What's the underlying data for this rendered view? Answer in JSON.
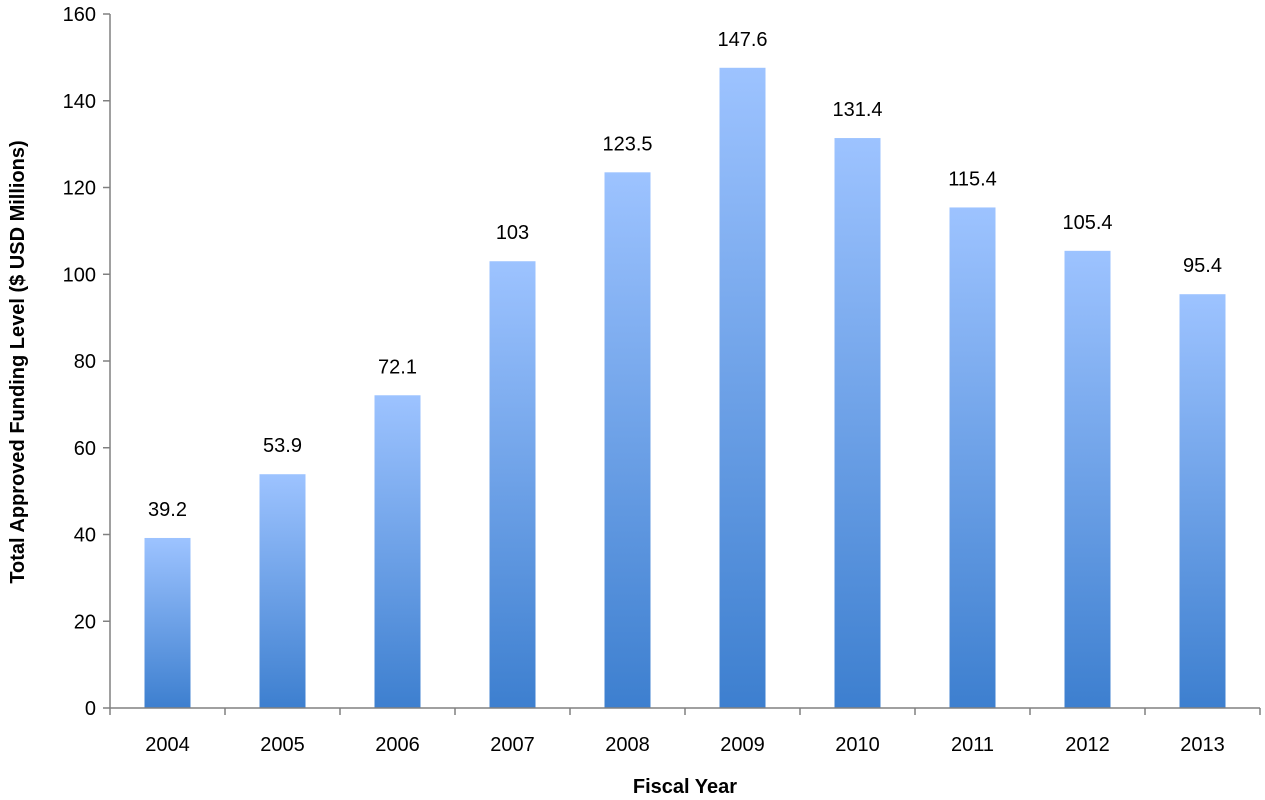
{
  "chart_data": {
    "type": "bar",
    "title": "",
    "xlabel": "Fiscal Year",
    "ylabel": "Total Approved Funding Level ($ USD Millions)",
    "categories": [
      "2004",
      "2005",
      "2006",
      "2007",
      "2008",
      "2009",
      "2010",
      "2011",
      "2012",
      "2013"
    ],
    "values": [
      39.2,
      53.9,
      72.1,
      103,
      123.5,
      147.6,
      131.4,
      115.4,
      105.4,
      95.4
    ],
    "data_labels": [
      "39.2",
      "53.9",
      "72.1",
      "103",
      "123.5",
      "147.6",
      "131.4",
      "115.4",
      "105.4",
      "95.4"
    ],
    "ylim": [
      0,
      160
    ],
    "yticks": [
      0,
      20,
      40,
      60,
      80,
      100,
      120,
      140,
      160
    ],
    "grid": false,
    "legend": "none",
    "colors": {
      "bar_top": "#9DC3FF",
      "bar_bottom": "#3D7FCF",
      "axis": "#808080"
    }
  }
}
